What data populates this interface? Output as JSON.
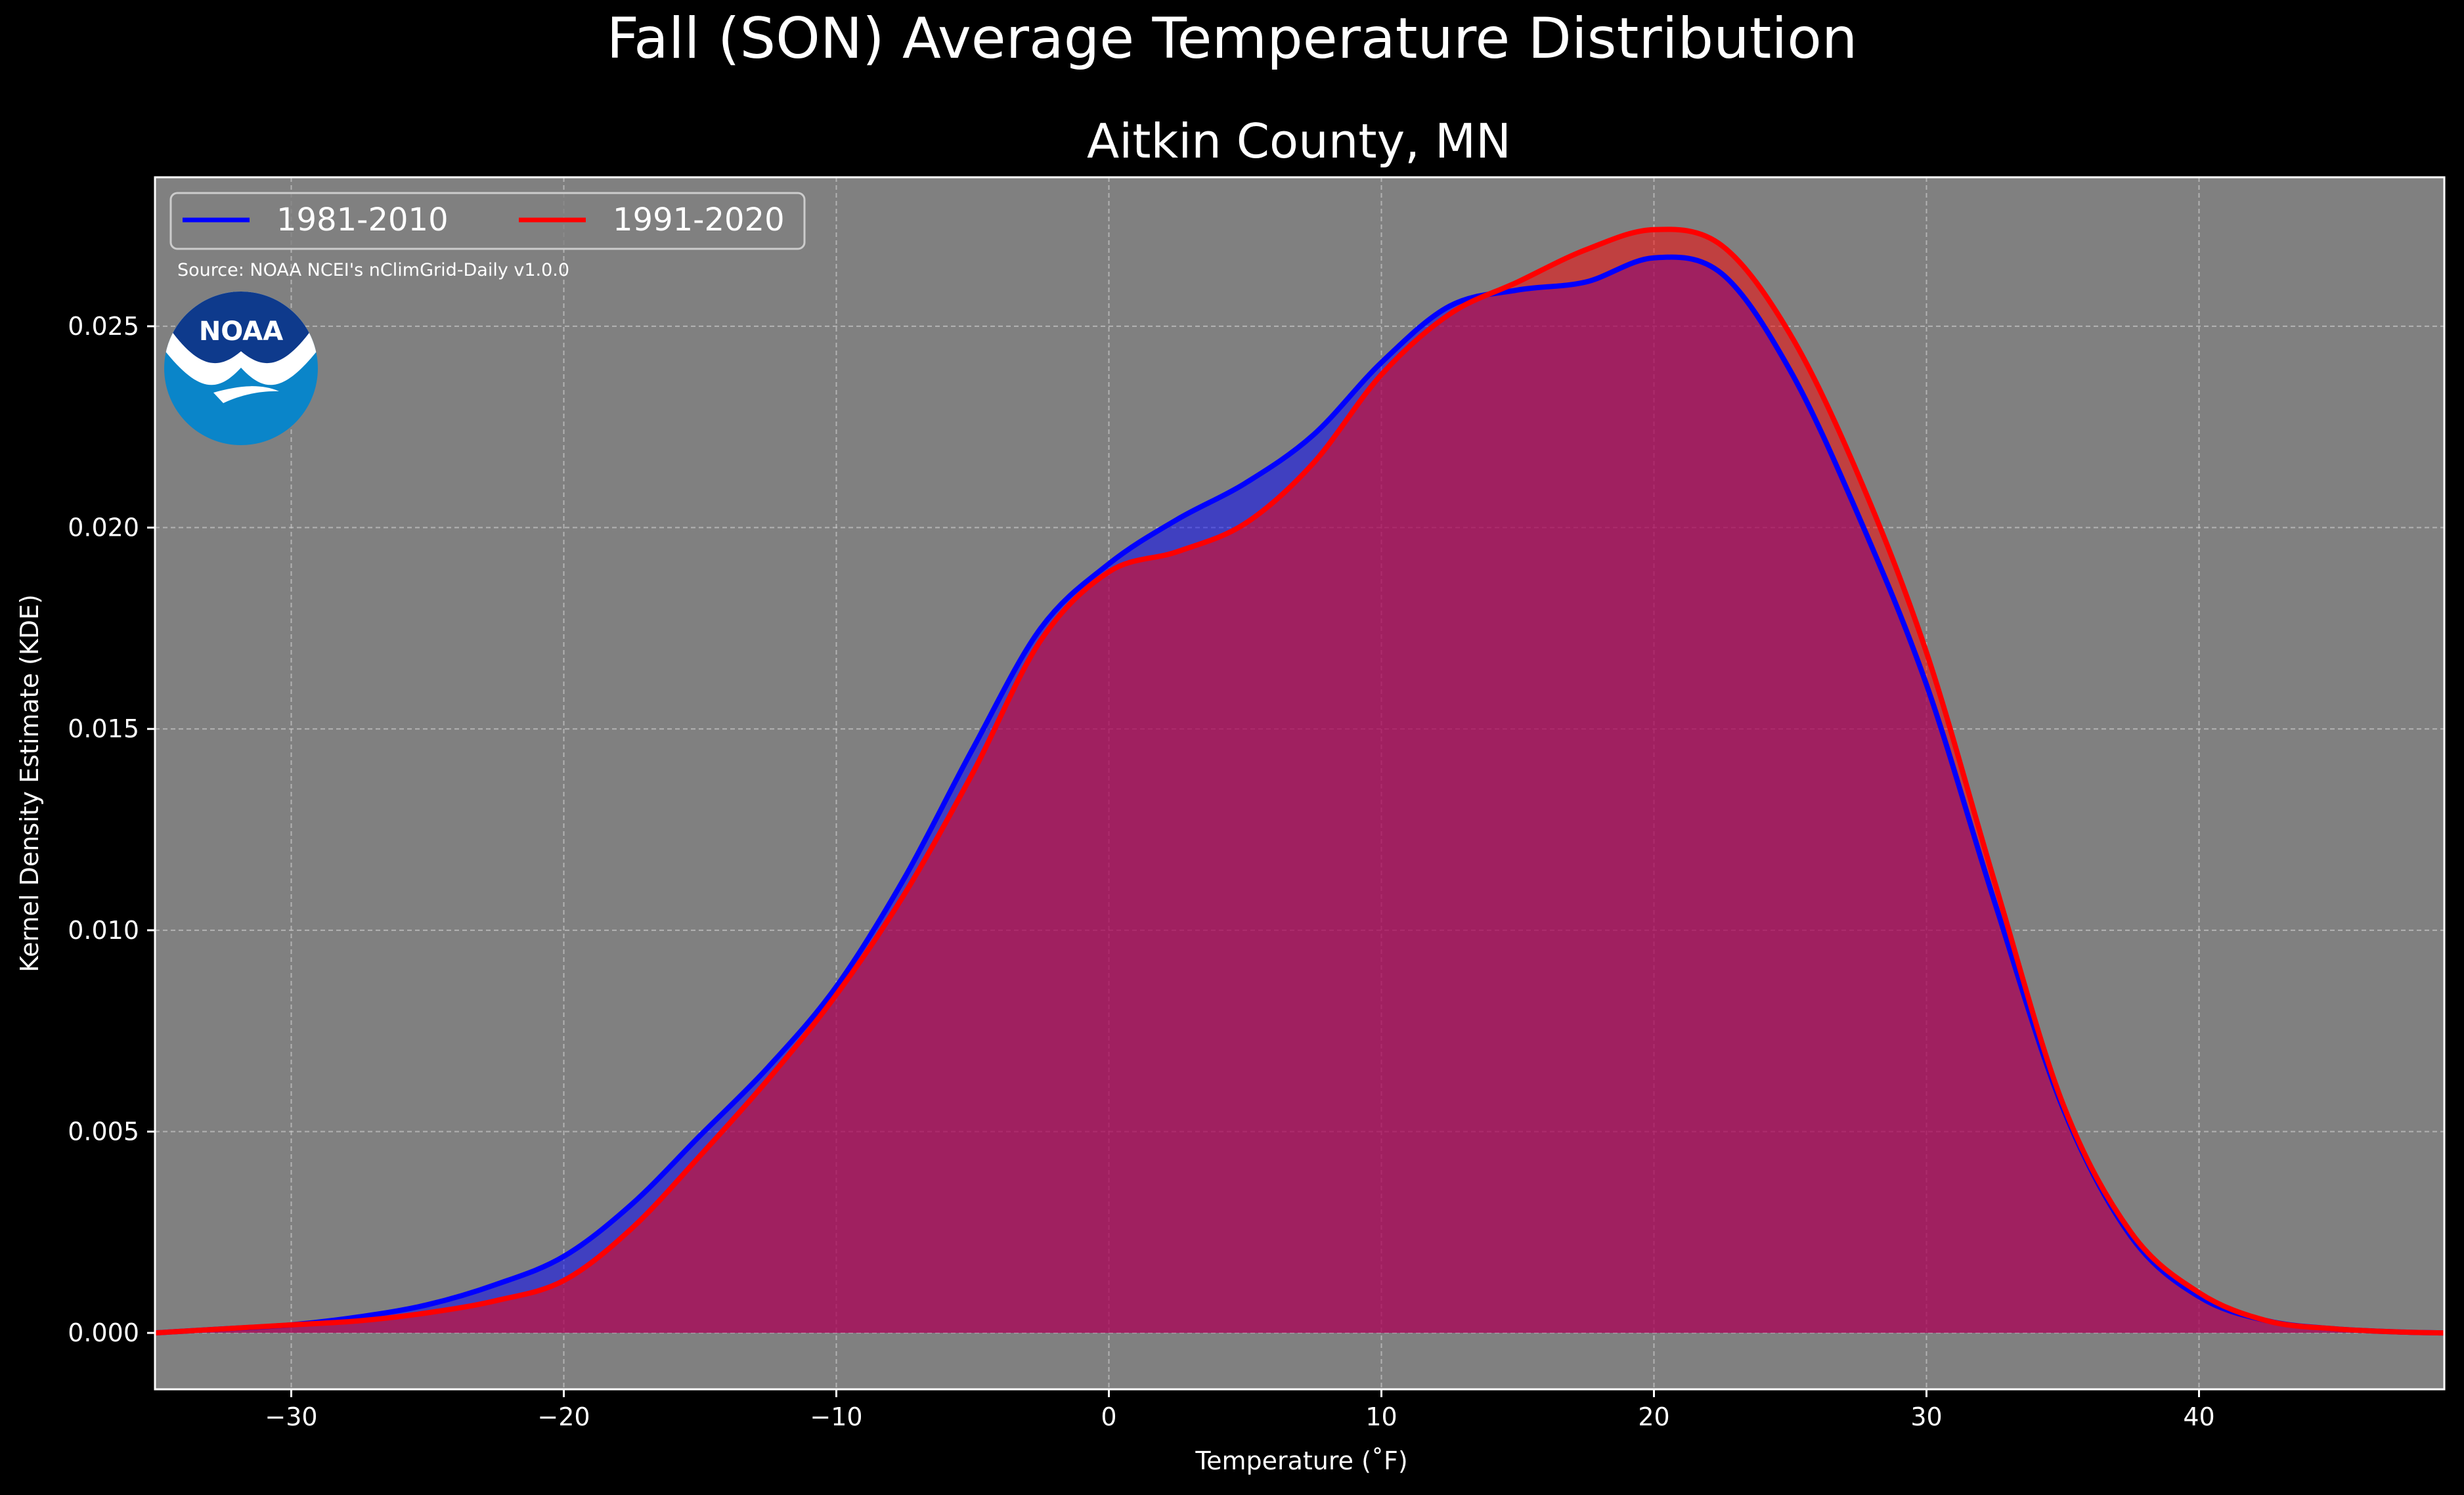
{
  "chart_data": {
    "type": "area",
    "title": "Fall (SON) Average Temperature Distribution",
    "subtitle": "Aitkin County, MN",
    "xlabel": "Temperature (˚F)",
    "ylabel": "Kernel Density Estimate (KDE)",
    "source": "Source: NOAA NCEI's nClimGrid-Daily v1.0.0",
    "logo_text": "NOAA",
    "xlim": [
      -35,
      49
    ],
    "ylim": [
      -0.0014,
      0.0287
    ],
    "x_ticks": [
      -30,
      -20,
      -10,
      0,
      10,
      20,
      30,
      40
    ],
    "x_tick_labels": [
      "−30",
      "−20",
      "−10",
      "0",
      "10",
      "20",
      "30",
      "40"
    ],
    "y_ticks": [
      0.0,
      0.005,
      0.01,
      0.015,
      0.02,
      0.025
    ],
    "y_tick_labels": [
      "0.000",
      "0.005",
      "0.010",
      "0.015",
      "0.020",
      "0.025"
    ],
    "grid": true,
    "legend_position": "top-left",
    "background": "#808080",
    "x": [
      -35,
      -32.5,
      -30,
      -27.5,
      -25,
      -22.5,
      -20,
      -17.5,
      -15,
      -12.5,
      -10,
      -7.5,
      -5,
      -2.5,
      0,
      2.5,
      5,
      7.5,
      10,
      12.5,
      15,
      17.5,
      20,
      22.5,
      25,
      27.5,
      30,
      32.5,
      35,
      37.5,
      40,
      42.5,
      45,
      47.5,
      49
    ],
    "series": [
      {
        "name": "1981-2010",
        "color": "#0000ff",
        "fill": "#0000ff",
        "values": [
          0.0,
          0.0001,
          0.0002,
          0.0004,
          0.0007,
          0.0012,
          0.0019,
          0.0032,
          0.0049,
          0.0066,
          0.0086,
          0.0113,
          0.0145,
          0.0175,
          0.0191,
          0.0202,
          0.0211,
          0.0223,
          0.0241,
          0.0255,
          0.0259,
          0.0261,
          0.0267,
          0.0263,
          0.0239,
          0.0203,
          0.0161,
          0.0107,
          0.0056,
          0.0024,
          0.0009,
          0.0003,
          0.0001,
          2e-05,
          0.0
        ]
      },
      {
        "name": "1991-2020",
        "color": "#ff0000",
        "fill": "#ff0000",
        "values": [
          0.0,
          0.0001,
          0.0002,
          0.0003,
          0.0005,
          0.0008,
          0.0013,
          0.0026,
          0.0044,
          0.0063,
          0.0084,
          0.0109,
          0.0139,
          0.0172,
          0.0189,
          0.0194,
          0.0201,
          0.0216,
          0.0238,
          0.0253,
          0.0261,
          0.0269,
          0.0274,
          0.027,
          0.0248,
          0.0213,
          0.0169,
          0.0112,
          0.0057,
          0.0025,
          0.001,
          0.0003,
          0.0001,
          2e-05,
          0.0
        ]
      }
    ]
  }
}
